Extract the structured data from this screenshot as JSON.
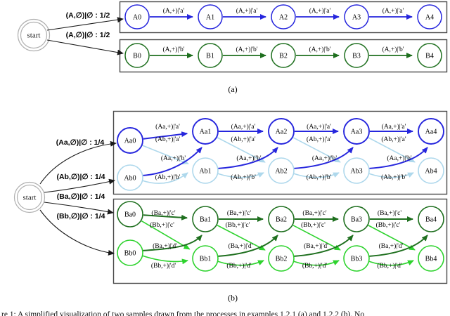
{
  "figure": {
    "label_a": "(a)",
    "label_b": "(b)",
    "caption_fragment": "re 1: A simplified visualization of two samples drawn from the processes in examples 1.2.1 (a) and 1.2.2 (b). No"
  },
  "colors": {
    "blue": "#2626dd",
    "light_blue": "#aed8ec",
    "dark_green": "#1e6f1e",
    "green": "#2ed32e",
    "black": "#1a1a1a",
    "box_border": "#4a4a4a",
    "start_ring": "#b0b0b0"
  },
  "part_a": {
    "start": {
      "label": "start"
    },
    "start_edge_labels": [
      "(A,∅)|∅ : 1/2",
      "(A,∅)|∅ : 1/2"
    ],
    "rows": [
      {
        "id": "A",
        "color_key": "blue",
        "nodes": [
          "A0",
          "A1",
          "A2",
          "A3",
          "A4"
        ],
        "edge_label": "(A,+)|'a'"
      },
      {
        "id": "B",
        "color_key": "dark_green",
        "nodes": [
          "B0",
          "B1",
          "B2",
          "B3",
          "B4"
        ],
        "edge_label": "(A,+)|'b'"
      }
    ]
  },
  "part_b": {
    "start": {
      "label": "start"
    },
    "start_edge_labels": [
      "(Aa,∅)|∅ : 1/4",
      "(Ab,∅)|∅ : 1/4",
      "(Ba,∅)|∅ : 1/4",
      "(Bb,∅)|∅ : 1/4"
    ],
    "boxes": [
      {
        "top_row": {
          "id": "Aa",
          "color_key": "blue",
          "nodes": [
            "Aa0",
            "Aa1",
            "Aa2",
            "Aa3",
            "Aa4"
          ]
        },
        "bottom_row": {
          "id": "Ab",
          "color_key": "light_blue",
          "nodes": [
            "Ab0",
            "Ab1",
            "Ab2",
            "Ab3",
            "Ab4"
          ]
        },
        "gap_labels": [
          "(Aa,+)|'a'",
          "(Ab,+)|'a'",
          "(Aa,+)|'b'",
          "(Ab,+)|'b'"
        ]
      },
      {
        "top_row": {
          "id": "Ba",
          "color_key": "dark_green",
          "nodes": [
            "Ba0",
            "Ba1",
            "Ba2",
            "Ba3",
            "Ba4"
          ]
        },
        "bottom_row": {
          "id": "Bb",
          "color_key": "green",
          "nodes": [
            "Bb0",
            "Bb1",
            "Bb2",
            "Bb3",
            "Bb4"
          ]
        },
        "gap_labels": [
          "(Ba,+)|'c'",
          "(Bb,+)|'c'",
          "(Ba,+)|'d'",
          "(Bb,+)|'d'"
        ]
      }
    ]
  }
}
